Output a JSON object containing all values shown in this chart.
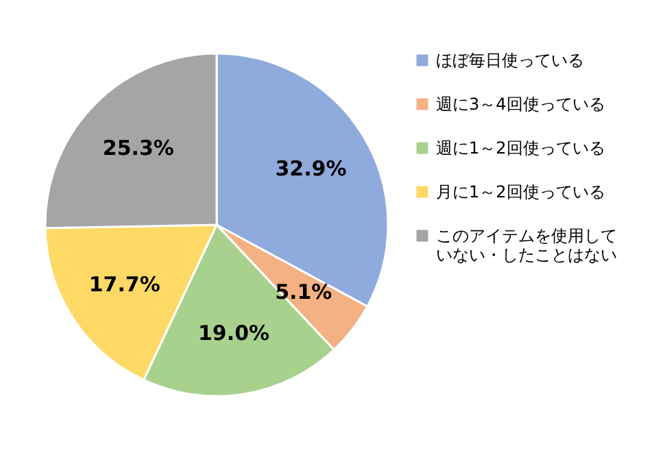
{
  "chart_data": {
    "type": "pie",
    "categories": [
      "ほぼ毎日使っている",
      "週に3～4回使っている",
      "週に1～2回使っている",
      "月に1～2回使っている",
      "このアイテムを使用していない・したことはない"
    ],
    "values": [
      32.9,
      5.1,
      19.0,
      17.7,
      25.3
    ],
    "colors": [
      "#8faadc",
      "#f4b183",
      "#a9d18e",
      "#ffd966",
      "#a5a5a5"
    ],
    "value_labels": [
      "32.9%",
      "5.1%",
      "19.0%",
      "17.7%",
      "25.3%"
    ],
    "legend": "right"
  }
}
